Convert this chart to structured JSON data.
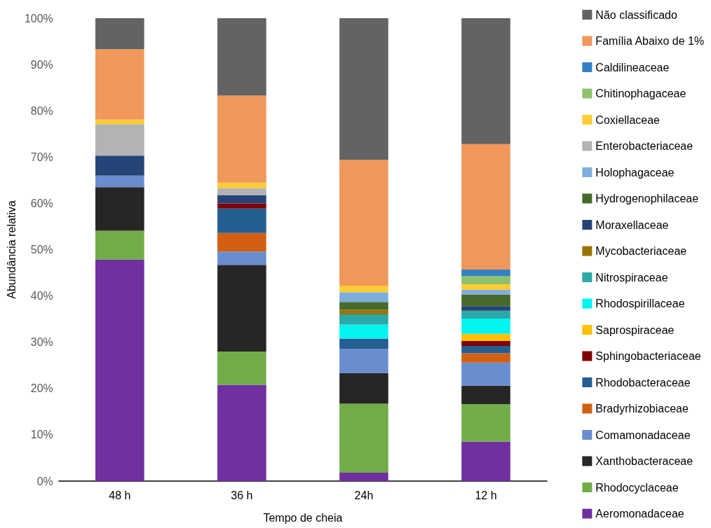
{
  "chart_data": {
    "type": "bar",
    "stacked": true,
    "xlabel": "Tempo de cheia",
    "ylabel": "Abundância relativa",
    "categories": [
      "48 h",
      "36 h",
      "24h",
      "12 h"
    ],
    "ylim": [
      0,
      100
    ],
    "yticks": [
      {
        "value": 0,
        "label": "0%"
      },
      {
        "value": 10,
        "label": "10%"
      },
      {
        "value": 20,
        "label": "20%"
      },
      {
        "value": 30,
        "label": "30%"
      },
      {
        "value": 40,
        "label": "40%"
      },
      {
        "value": 50,
        "label": "50%"
      },
      {
        "value": 60,
        "label": "60%"
      },
      {
        "value": 70,
        "label": "70%"
      },
      {
        "value": 80,
        "label": "80%"
      },
      {
        "value": 90,
        "label": "90%"
      },
      {
        "value": 100,
        "label": "100%"
      }
    ],
    "grid": false,
    "legend": "right",
    "series": [
      {
        "name": "Aeromonadaceae",
        "color": "#7030a0",
        "values": [
          47.9,
          20.8,
          1.8,
          8.5
        ]
      },
      {
        "name": "Rhodocyclaceae",
        "color": "#70ad47",
        "values": [
          6.2,
          7.2,
          14.9,
          8.1
        ]
      },
      {
        "name": "Xanthobacteraceae",
        "color": "#262626",
        "values": [
          9.4,
          18.7,
          6.6,
          4.0
        ]
      },
      {
        "name": "Comamonadaceae",
        "color": "#698ed0",
        "values": [
          2.5,
          2.9,
          5.2,
          5.0
        ]
      },
      {
        "name": "Bradyrhizobiaceae",
        "color": "#d26012",
        "values": [
          null,
          4.0,
          null,
          2.0
        ]
      },
      {
        "name": "Rhodobacteraceae",
        "color": "#255e91",
        "values": [
          null,
          5.3,
          2.3,
          1.6
        ]
      },
      {
        "name": "Sphingobacteriaceae",
        "color": "#7f0000",
        "values": [
          null,
          1.1,
          null,
          1.1
        ]
      },
      {
        "name": "Saprospiraceae",
        "color": "#ffc000",
        "values": [
          null,
          null,
          null,
          1.5
        ]
      },
      {
        "name": "Rhodospirillaceae",
        "color": "#00f5f0",
        "values": [
          null,
          null,
          3.0,
          3.3
        ]
      },
      {
        "name": "Nitrospiraceae",
        "color": "#2ba9a9",
        "values": [
          null,
          null,
          2.2,
          1.7
        ]
      },
      {
        "name": "Mycobacteriaceae",
        "color": "#9a7200",
        "values": [
          null,
          null,
          1.0,
          null
        ]
      },
      {
        "name": "Moraxellaceae",
        "color": "#264478",
        "values": [
          4.3,
          1.8,
          null,
          1.0
        ]
      },
      {
        "name": "Hydrogenophilaceae",
        "color": "#466a2c",
        "values": [
          null,
          null,
          1.7,
          2.5
        ]
      },
      {
        "name": "Holophagaceae",
        "color": "#7eaedd",
        "values": [
          null,
          null,
          2.1,
          1.0
        ]
      },
      {
        "name": "Enterobacteriaceae",
        "color": "#b3b3b3",
        "values": [
          6.8,
          1.5,
          null,
          null
        ]
      },
      {
        "name": "Coxiellaceae",
        "color": "#ffcc33",
        "values": [
          1.0,
          1.2,
          1.4,
          1.2
        ]
      },
      {
        "name": "Chitinophagaceae",
        "color": "#8fc16a",
        "values": [
          null,
          null,
          null,
          1.8
        ]
      },
      {
        "name": "Caldilineaceae",
        "color": "#3380c4",
        "values": [
          null,
          null,
          null,
          1.4
        ]
      },
      {
        "name": "Família Abaixo de 1%",
        "color": "#f0975b",
        "values": [
          15.2,
          18.8,
          27.2,
          27.1
        ]
      },
      {
        "name": "Não classificado",
        "color": "#636363",
        "values": [
          6.7,
          16.7,
          30.6,
          27.2
        ]
      }
    ]
  }
}
